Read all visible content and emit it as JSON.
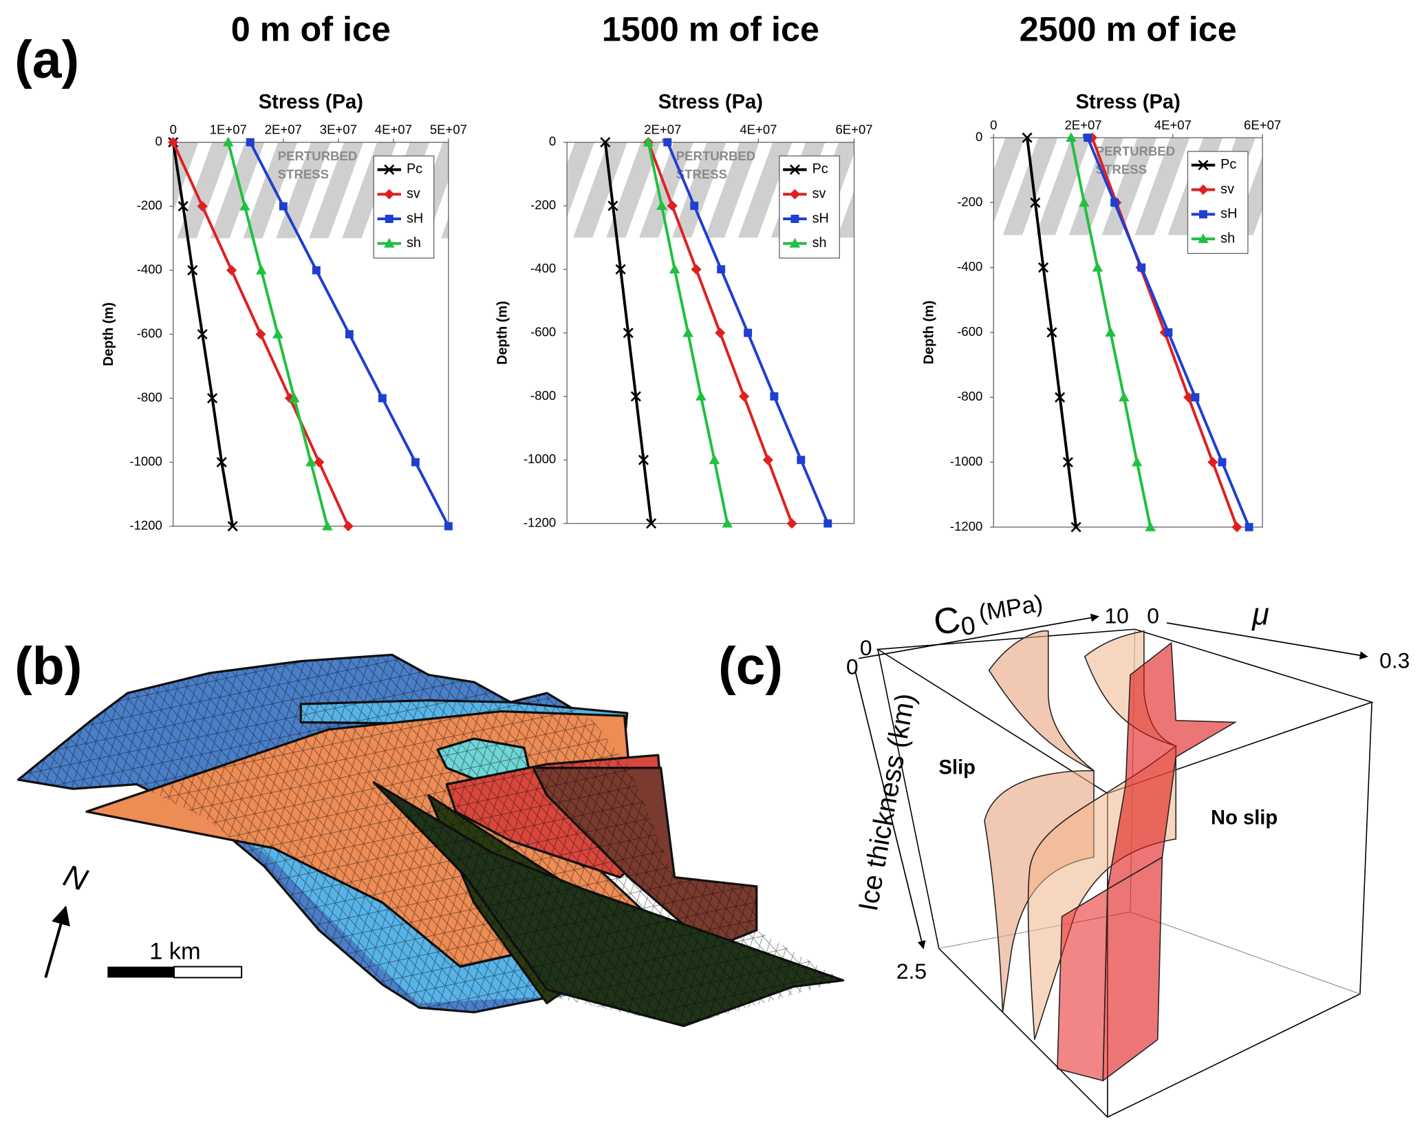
{
  "panels": {
    "a": "(a)",
    "b": "(b)",
    "c": "(c)"
  },
  "chart_data": [
    {
      "type": "line",
      "orientation": "horizontal",
      "title": "0 m of ice",
      "xlabel": "Stress (Pa)",
      "ylabel": "Depth (m)",
      "y": [
        0,
        -200,
        -400,
        -600,
        -800,
        -1000,
        -1200
      ],
      "xlim": [
        0,
        50000000.0
      ],
      "xticks": [
        0,
        {
          "value": 10000000.0,
          "label": "1E+07"
        },
        {
          "value": 20000000.0,
          "label": "2E+07"
        },
        {
          "value": 30000000.0,
          "label": "3E+07"
        },
        {
          "value": 40000000.0,
          "label": "4E+07"
        },
        {
          "value": 50000000.0,
          "label": "5E+07"
        }
      ],
      "ylim": [
        -1200,
        0
      ],
      "yticks": [
        0,
        -200,
        -400,
        -600,
        -800,
        -1000,
        -1200
      ],
      "grid": false,
      "legend": "upper right",
      "shaded_band": [
        -300,
        0
      ],
      "annotation_lines": [
        "PERTURBED",
        "STRESS"
      ],
      "series": [
        {
          "name": "Pc",
          "color": "#000000",
          "marker": "x",
          "values": [
            0,
            1800000.0,
            3500000.0,
            5300000.0,
            7100000.0,
            8800000.0,
            10800000.0
          ]
        },
        {
          "name": "sv",
          "color": "#e02020",
          "marker": "diamond",
          "values": [
            0,
            5300000.0,
            10600000.0,
            15900000.0,
            21200000.0,
            26500000.0,
            31800000.0
          ]
        },
        {
          "name": "sH",
          "color": "#1f3fd0",
          "marker": "square",
          "values": [
            14000000.0,
            20000000.0,
            26000000.0,
            32000000.0,
            38000000.0,
            44000000.0,
            50000000.0
          ]
        },
        {
          "name": "sh",
          "color": "#20c040",
          "marker": "triangle",
          "values": [
            10000000.0,
            13000000.0,
            16000000.0,
            19000000.0,
            22000000.0,
            25000000.0,
            28000000.0
          ]
        }
      ]
    },
    {
      "type": "line",
      "orientation": "horizontal",
      "title": "1500 m of ice",
      "xlabel": "Stress (Pa)",
      "ylabel": "Depth (m)",
      "y": [
        0,
        -200,
        -400,
        -600,
        -800,
        -1000,
        -1200
      ],
      "xlim": [
        0,
        60000000.0
      ],
      "xticks": [
        {
          "value": 20000000.0,
          "label": "2E+07"
        },
        {
          "value": 40000000.0,
          "label": "4E+07"
        },
        {
          "value": 60000000.0,
          "label": "6E+07"
        }
      ],
      "ylim": [
        -1200,
        0
      ],
      "yticks": [
        0,
        -200,
        -400,
        -600,
        -800,
        -1000,
        -1200
      ],
      "grid": false,
      "legend": "upper right",
      "shaded_band": [
        -300,
        0
      ],
      "annotation_lines": [
        "PERTURBED",
        "STRESS"
      ],
      "series": [
        {
          "name": "Pc",
          "color": "#000000",
          "marker": "x",
          "values": [
            8000000.0,
            9600000.0,
            11200000.0,
            12800000.0,
            14400000.0,
            16000000.0,
            17600000.0
          ]
        },
        {
          "name": "sv",
          "color": "#e02020",
          "marker": "diamond",
          "values": [
            17000000.0,
            22000000.0,
            27000000.0,
            32000000.0,
            37000000.0,
            42000000.0,
            47000000.0
          ]
        },
        {
          "name": "sH",
          "color": "#1f3fd0",
          "marker": "square",
          "values": [
            21000000.0,
            26600000.0,
            32200000.0,
            37800000.0,
            43300000.0,
            48900000.0,
            54500000.0
          ]
        },
        {
          "name": "sh",
          "color": "#20c040",
          "marker": "triangle",
          "values": [
            17000000.0,
            19800000.0,
            22500000.0,
            25300000.0,
            28000000.0,
            30800000.0,
            33500000.0
          ]
        }
      ]
    },
    {
      "type": "line",
      "orientation": "horizontal",
      "title": "2500 m of ice",
      "xlabel": "Stress (Pa)",
      "ylabel": "Depth (m)",
      "y": [
        0,
        -200,
        -400,
        -600,
        -800,
        -1000,
        -1200
      ],
      "xlim": [
        0,
        60000000.0
      ],
      "xticks": [
        0,
        {
          "value": 20000000.0,
          "label": "2E+07"
        },
        {
          "value": 40000000.0,
          "label": "4E+07"
        },
        {
          "value": 60000000.0,
          "label": "6E+07"
        }
      ],
      "ylim": [
        -1200,
        0
      ],
      "yticks": [
        0,
        -200,
        -400,
        -600,
        -800,
        -1000,
        -1200
      ],
      "grid": false,
      "legend": "upper right",
      "shaded_band": [
        -300,
        0
      ],
      "annotation_lines": [
        "PERTURBED",
        "STRESS"
      ],
      "series": [
        {
          "name": "Pc",
          "color": "#000000",
          "marker": "x",
          "values": [
            7500000.0,
            9300000.0,
            11100000.0,
            13000000.0,
            14800000.0,
            16600000.0,
            18400000.0
          ]
        },
        {
          "name": "sv",
          "color": "#e02020",
          "marker": "diamond",
          "values": [
            22000000.0,
            27400000.0,
            32800000.0,
            38200000.0,
            43500000.0,
            48900000.0,
            54300000.0
          ]
        },
        {
          "name": "sH",
          "color": "#1f3fd0",
          "marker": "square",
          "values": [
            21000000.0,
            27000000.0,
            33000000.0,
            39000000.0,
            45000000.0,
            51000000.0,
            57000000.0
          ]
        },
        {
          "name": "sh",
          "color": "#20c040",
          "marker": "triangle",
          "values": [
            17300000.0,
            20200000.0,
            23200000.0,
            26100000.0,
            29100000.0,
            32000000.0,
            35000000.0
          ]
        }
      ]
    }
  ],
  "map": {
    "north": "N",
    "scale": "1 km"
  },
  "diagram": {
    "c0_symbol": "C",
    "c0_sub": "0",
    "c0_unit": "(MPa)",
    "c0_min": "0",
    "c0_max": "10",
    "mu_symbol": "μ",
    "mu_min": "0",
    "mu_max": "0.3",
    "depth_label": "Ice thickness (km)",
    "depth_min": "0",
    "depth_max": "2.5",
    "slip": "Slip",
    "no_slip": "No slip"
  }
}
